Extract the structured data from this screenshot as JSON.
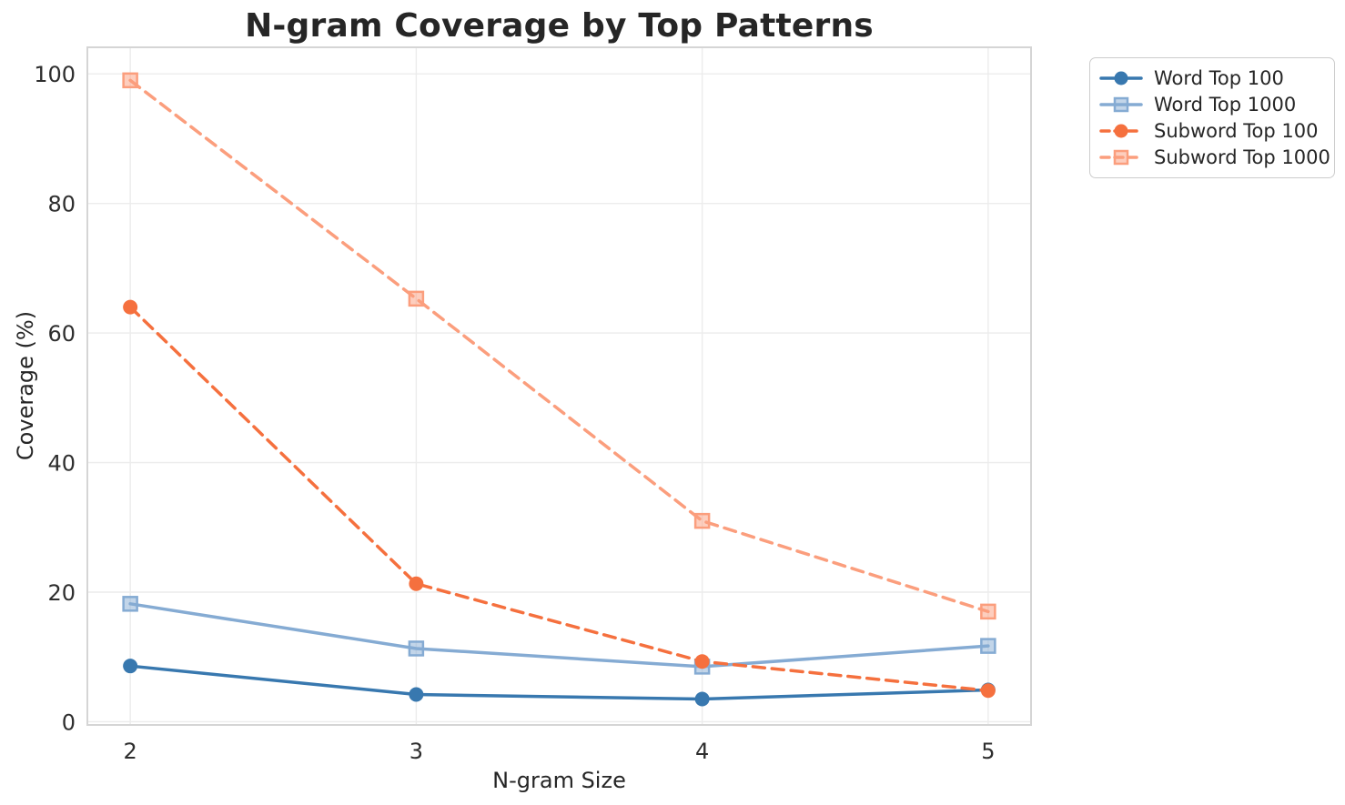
{
  "chart_data": {
    "type": "line",
    "title": "N-gram Coverage by Top Patterns",
    "xlabel": "N-gram Size",
    "ylabel": "Coverage (%)",
    "x": [
      2,
      3,
      4,
      5
    ],
    "xticks": [
      2,
      3,
      4,
      5
    ],
    "yticks": [
      0,
      20,
      40,
      60,
      80,
      100
    ],
    "xlim": [
      1.85,
      5.15
    ],
    "ylim": [
      -0.5,
      104.1
    ],
    "grid": true,
    "grid_color": "#ececec",
    "spine_color": "#d5d5d5",
    "legend_position": "upper-right",
    "series": [
      {
        "name": "Word Top 100",
        "color": "#3878af",
        "line": "solid",
        "marker": "circle",
        "values": [
          8.6,
          4.2,
          3.5,
          4.9
        ]
      },
      {
        "name": "Word Top 1000",
        "color": "#85abd3",
        "line": "solid",
        "marker": "square",
        "values": [
          18.2,
          11.3,
          8.5,
          11.7
        ]
      },
      {
        "name": "Subword Top 100",
        "color": "#f5703e",
        "line": "dashed",
        "marker": "circle",
        "values": [
          64.0,
          21.3,
          9.3,
          4.8
        ]
      },
      {
        "name": "Subword Top 1000",
        "color": "#fb9e7d",
        "line": "dashed",
        "marker": "square",
        "values": [
          99.0,
          65.3,
          31.0,
          17.0
        ]
      }
    ]
  }
}
